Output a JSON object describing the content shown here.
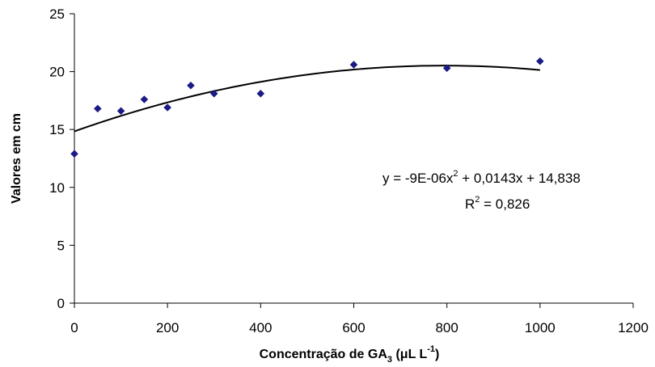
{
  "chart_data": {
    "type": "scatter",
    "x": [
      0,
      50,
      100,
      150,
      200,
      250,
      300,
      400,
      600,
      800,
      1000
    ],
    "y": [
      12.9,
      16.8,
      16.6,
      17.6,
      16.9,
      18.8,
      18.1,
      18.1,
      20.6,
      20.3,
      20.9
    ],
    "xlim": [
      0,
      1200
    ],
    "ylim": [
      0,
      25
    ],
    "x_ticks": [
      "0",
      "200",
      "400",
      "600",
      "800",
      "1000",
      "1200"
    ],
    "y_ticks": [
      "0",
      "5",
      "10",
      "15",
      "20",
      "25"
    ],
    "xlabel": {
      "main": "Concentração de GA",
      "sub": "3",
      "paren_open": " (μL L",
      "sup": "-1",
      "paren_close": ")"
    },
    "ylabel": "Valores em cm",
    "grid": false,
    "trendline": {
      "type": "polynomial",
      "coefficients": [
        -9e-06,
        0.0143,
        14.838
      ],
      "x_range": [
        0,
        1000
      ],
      "color": "#000000"
    },
    "equation": {
      "line1_a": "y = -9E-06x",
      "line1_sup": "2",
      "line1_b": " + 0,0143x + 14,838",
      "line2_a": "R",
      "line2_sup": "2",
      "line2_b": " = 0,826"
    },
    "marker_color": "#1a1a8c"
  }
}
